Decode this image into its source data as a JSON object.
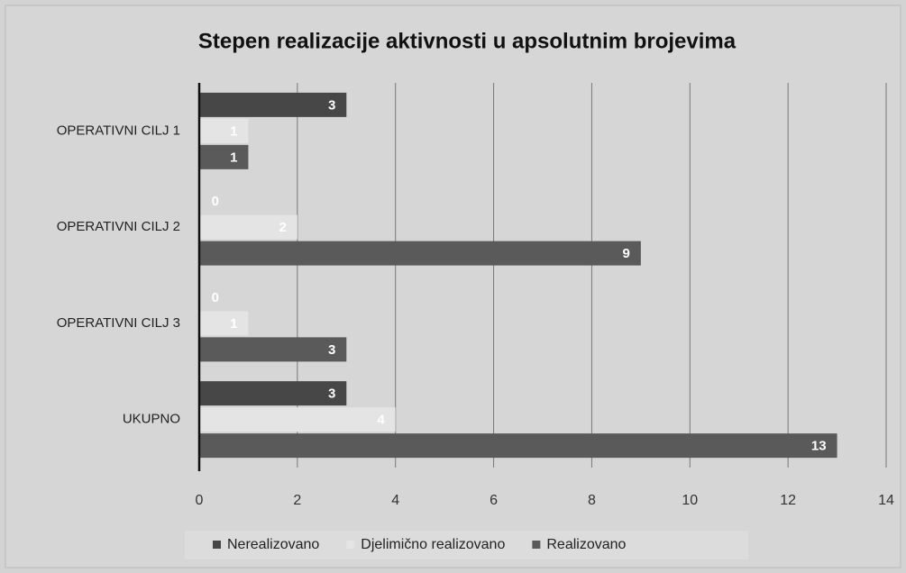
{
  "chart_data": {
    "type": "hbar",
    "title": "Stepen realizacije aktivnosti u apsolutnim brojevima",
    "categories": [
      "OPERATIVNI CILJ 1",
      "OPERATIVNI CILJ 2",
      "OPERATIVNI CILJ 3",
      "UKUPNO"
    ],
    "series": [
      {
        "name": "Nerealizovano",
        "color": "#474747",
        "values": [
          3,
          0,
          0,
          3
        ]
      },
      {
        "name": "Djelimično realizovano",
        "color": "#e4e4e4",
        "values": [
          1,
          2,
          1,
          4
        ]
      },
      {
        "name": "Realizovano",
        "color": "#5a5a5a",
        "values": [
          1,
          9,
          3,
          13
        ]
      }
    ],
    "xlim": [
      0,
      14
    ],
    "xticks": [
      0,
      2,
      4,
      6,
      8,
      10,
      12,
      14
    ],
    "grid": true,
    "legend": "bottom"
  }
}
